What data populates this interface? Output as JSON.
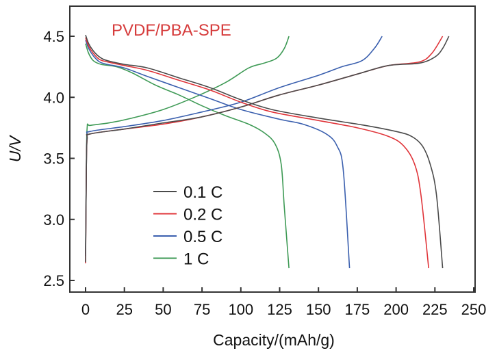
{
  "chart_data": {
    "type": "line",
    "title": "",
    "annotation": {
      "text": "PVDF/PBA-SPE",
      "color": "#d63c3c",
      "placement": "top-left"
    },
    "xlabel": "Capacity/(mAh/g)",
    "ylabel": "U/V",
    "xlim": [
      -10,
      250
    ],
    "ylim": [
      2.4,
      4.75
    ],
    "xticks": [
      0,
      25,
      50,
      75,
      100,
      125,
      150,
      175,
      200,
      225,
      250
    ],
    "xtick_labels": [
      "0",
      "25",
      "50",
      "75",
      "100",
      "125",
      "150",
      "175",
      "200",
      "225",
      "250"
    ],
    "yticks": [
      2.5,
      3.0,
      3.5,
      4.0,
      4.5
    ],
    "ytick_labels": [
      "2.5",
      "3.0",
      "3.5",
      "4.0",
      "4.5"
    ],
    "grid": false,
    "legend": {
      "placement": "lower-left-center",
      "entries": [
        "0.1 C",
        "0.2 C",
        "0.5 C",
        "1 C"
      ]
    },
    "series": [
      {
        "name": "0.1 C",
        "color": "#4a4a4a",
        "discharge": [
          [
            0,
            4.51
          ],
          [
            2,
            4.44
          ],
          [
            5,
            4.38
          ],
          [
            9,
            4.33
          ],
          [
            14,
            4.3
          ],
          [
            25,
            4.27
          ],
          [
            40,
            4.24
          ],
          [
            60,
            4.16
          ],
          [
            80,
            4.08
          ],
          [
            100,
            3.98
          ],
          [
            120,
            3.9
          ],
          [
            150,
            3.83
          ],
          [
            180,
            3.77
          ],
          [
            200,
            3.72
          ],
          [
            210,
            3.68
          ],
          [
            217,
            3.6
          ],
          [
            222,
            3.45
          ],
          [
            226,
            3.2
          ],
          [
            230,
            2.6
          ]
        ],
        "charge": [
          [
            0,
            2.65
          ],
          [
            0.5,
            3.4
          ],
          [
            1,
            3.66
          ],
          [
            3,
            3.7
          ],
          [
            25,
            3.74
          ],
          [
            50,
            3.79
          ],
          [
            75,
            3.84
          ],
          [
            100,
            3.92
          ],
          [
            125,
            4.02
          ],
          [
            150,
            4.1
          ],
          [
            175,
            4.19
          ],
          [
            195,
            4.26
          ],
          [
            215,
            4.28
          ],
          [
            225,
            4.33
          ],
          [
            230,
            4.4
          ],
          [
            234,
            4.5
          ]
        ]
      },
      {
        "name": "0.2 C",
        "color": "#e0353a",
        "discharge": [
          [
            0,
            4.49
          ],
          [
            2,
            4.42
          ],
          [
            5,
            4.36
          ],
          [
            9,
            4.31
          ],
          [
            14,
            4.29
          ],
          [
            25,
            4.26
          ],
          [
            40,
            4.22
          ],
          [
            60,
            4.14
          ],
          [
            80,
            4.06
          ],
          [
            100,
            3.96
          ],
          [
            120,
            3.88
          ],
          [
            150,
            3.81
          ],
          [
            175,
            3.75
          ],
          [
            195,
            3.68
          ],
          [
            205,
            3.6
          ],
          [
            212,
            3.45
          ],
          [
            216,
            3.2
          ],
          [
            221,
            2.6
          ]
        ],
        "charge": [
          [
            0,
            2.64
          ],
          [
            0.5,
            3.4
          ],
          [
            1,
            3.66
          ],
          [
            3,
            3.7
          ],
          [
            25,
            3.74
          ],
          [
            50,
            3.78
          ],
          [
            75,
            3.84
          ],
          [
            100,
            3.92
          ],
          [
            125,
            4.02
          ],
          [
            150,
            4.1
          ],
          [
            175,
            4.19
          ],
          [
            195,
            4.26
          ],
          [
            215,
            4.29
          ],
          [
            223,
            4.36
          ],
          [
            230,
            4.5
          ]
        ]
      },
      {
        "name": "0.5 C",
        "color": "#3a5fae",
        "discharge": [
          [
            0,
            4.47
          ],
          [
            2,
            4.4
          ],
          [
            5,
            4.34
          ],
          [
            9,
            4.29
          ],
          [
            14,
            4.27
          ],
          [
            25,
            4.24
          ],
          [
            40,
            4.17
          ],
          [
            60,
            4.08
          ],
          [
            80,
            3.99
          ],
          [
            100,
            3.9
          ],
          [
            125,
            3.82
          ],
          [
            140,
            3.78
          ],
          [
            155,
            3.7
          ],
          [
            162,
            3.6
          ],
          [
            166,
            3.4
          ],
          [
            170,
            2.6
          ]
        ],
        "charge": [
          [
            0,
            2.7
          ],
          [
            0.5,
            3.4
          ],
          [
            1,
            3.68
          ],
          [
            3,
            3.72
          ],
          [
            25,
            3.76
          ],
          [
            50,
            3.81
          ],
          [
            75,
            3.88
          ],
          [
            100,
            3.96
          ],
          [
            125,
            4.08
          ],
          [
            150,
            4.18
          ],
          [
            165,
            4.25
          ],
          [
            178,
            4.3
          ],
          [
            186,
            4.4
          ],
          [
            191,
            4.5
          ]
        ]
      },
      {
        "name": "1 C",
        "color": "#3e9a55",
        "discharge": [
          [
            0,
            4.44
          ],
          [
            2,
            4.36
          ],
          [
            5,
            4.3
          ],
          [
            10,
            4.27
          ],
          [
            20,
            4.25
          ],
          [
            30,
            4.2
          ],
          [
            45,
            4.1
          ],
          [
            60,
            4.02
          ],
          [
            75,
            3.93
          ],
          [
            90,
            3.85
          ],
          [
            105,
            3.78
          ],
          [
            115,
            3.71
          ],
          [
            122,
            3.62
          ],
          [
            126,
            3.45
          ],
          [
            128,
            3.1
          ],
          [
            131,
            2.6
          ]
        ],
        "charge": [
          [
            0,
            2.72
          ],
          [
            0.5,
            3.4
          ],
          [
            1,
            3.75
          ],
          [
            3,
            3.77
          ],
          [
            15,
            3.79
          ],
          [
            30,
            3.83
          ],
          [
            50,
            3.9
          ],
          [
            70,
            4.0
          ],
          [
            90,
            4.12
          ],
          [
            105,
            4.24
          ],
          [
            115,
            4.28
          ],
          [
            123,
            4.32
          ],
          [
            128,
            4.4
          ],
          [
            131,
            4.5
          ]
        ]
      }
    ]
  }
}
